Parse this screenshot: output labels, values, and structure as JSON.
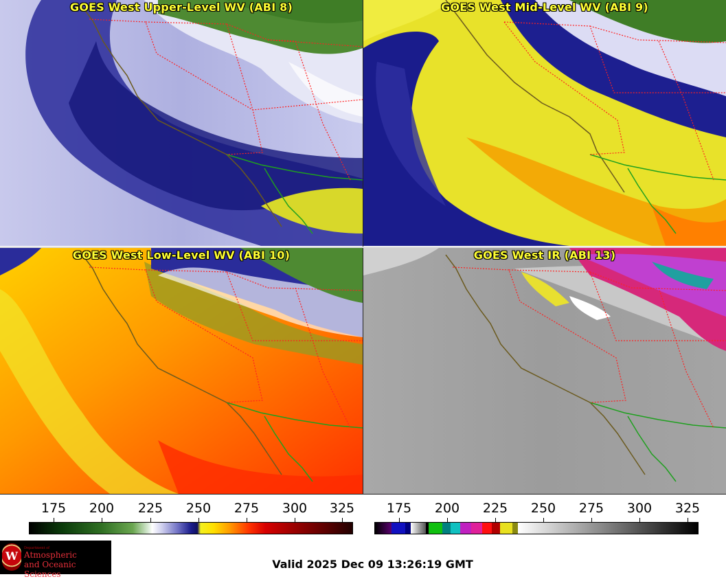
{
  "panels": [
    {
      "title": "GOES West Upper-Level WV (ABI 8)"
    },
    {
      "title": "GOES West Mid-Level WV (ABI 9)"
    },
    {
      "title": "GOES West Low-Level WV (ABI 10)"
    },
    {
      "title": "GOES West IR (ABI 13)"
    }
  ],
  "colorbars": {
    "ticks": [
      "175",
      "200",
      "225",
      "250",
      "275",
      "300",
      "325"
    ]
  },
  "logo": {
    "dept_label": "Department of",
    "line1": "Atmospheric",
    "line2": "and Oceanic Sciences",
    "seal_letter": "W"
  },
  "valid_text": "Valid 2025 Dec 09 13:26:19 GMT",
  "colors": {
    "title_text": "#ffff33",
    "state_borders": "#ff2020",
    "coastline": "#6b5a1e",
    "mexico_coast": "#1fa01f"
  }
}
